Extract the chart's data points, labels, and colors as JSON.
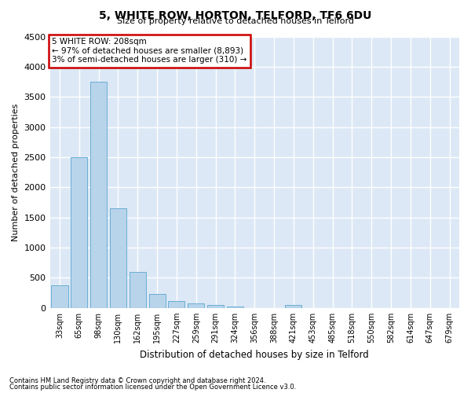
{
  "title": "5, WHITE ROW, HORTON, TELFORD, TF6 6DU",
  "subtitle": "Size of property relative to detached houses in Telford",
  "xlabel": "Distribution of detached houses by size in Telford",
  "ylabel": "Number of detached properties",
  "categories": [
    "33sqm",
    "65sqm",
    "98sqm",
    "130sqm",
    "162sqm",
    "195sqm",
    "227sqm",
    "259sqm",
    "291sqm",
    "324sqm",
    "356sqm",
    "388sqm",
    "421sqm",
    "453sqm",
    "485sqm",
    "518sqm",
    "550sqm",
    "582sqm",
    "614sqm",
    "647sqm",
    "679sqm"
  ],
  "values": [
    370,
    2500,
    3750,
    1650,
    600,
    230,
    110,
    70,
    50,
    30,
    0,
    0,
    55,
    0,
    0,
    0,
    0,
    0,
    0,
    0,
    0
  ],
  "bar_color": "#b8d4ea",
  "bar_edge_color": "#6aaed6",
  "ylim": [
    0,
    4500
  ],
  "yticks": [
    0,
    500,
    1000,
    1500,
    2000,
    2500,
    3000,
    3500,
    4000,
    4500
  ],
  "annotation_lines": [
    "5 WHITE ROW: 208sqm",
    "← 97% of detached houses are smaller (8,893)",
    "3% of semi-detached houses are larger (310) →"
  ],
  "annotation_box_color": "#ffffff",
  "annotation_box_edge": "#cc0000",
  "bg_color": "#dce8f5",
  "grid_color": "#ffffff",
  "footer_line1": "Contains HM Land Registry data © Crown copyright and database right 2024.",
  "footer_line2": "Contains public sector information licensed under the Open Government Licence v3.0."
}
